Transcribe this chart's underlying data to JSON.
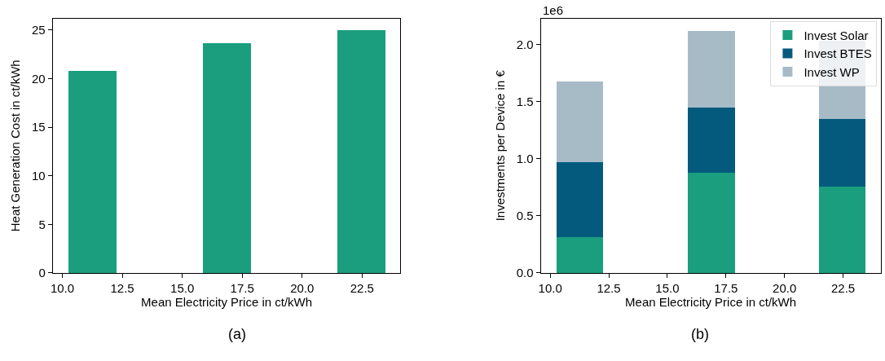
{
  "chart_data": [
    {
      "type": "bar",
      "xlabel": "Mean Electricity Price in ct/kWh",
      "ylabel": "Heat Generation Cost in ct/kWh",
      "x": [
        11.26,
        16.86,
        22.45
      ],
      "values": [
        20.8,
        23.7,
        25.0
      ],
      "color": "#1a9e7e",
      "xlim": [
        9.6,
        24.1
      ],
      "xticks": [
        {
          "value": 10,
          "label": "10.0"
        },
        12.5,
        {
          "value": 15,
          "label": "15.0"
        },
        17.5,
        {
          "value": 20,
          "label": "20.0"
        },
        22.5
      ],
      "ylim": [
        0,
        26.2
      ],
      "yticks": [
        0,
        5,
        10,
        15,
        20,
        25
      ],
      "legend": false,
      "annotations": [
        "(a)"
      ]
    },
    {
      "type": "bar",
      "stacked": true,
      "xlabel": "Mean Electricity Price in ct/kWh",
      "ylabel": "Investments per Device in €",
      "x": [
        11.26,
        16.86,
        22.45
      ],
      "series": [
        {
          "name": "Invest Solar",
          "color": "#1a9e7e",
          "values": [
            0.32,
            0.88,
            0.76
          ]
        },
        {
          "name": "Invest BTES",
          "color": "#045a7d",
          "values": [
            0.65,
            0.57,
            0.59
          ]
        },
        {
          "name": "Invest WP",
          "color": "#a7bbc7",
          "values": [
            0.71,
            0.67,
            0.69
          ]
        }
      ],
      "xlim": [
        9.6,
        24.1
      ],
      "xticks": [
        {
          "value": 10,
          "label": "10.0"
        },
        12.5,
        {
          "value": 15,
          "label": "15.0"
        },
        17.5,
        {
          "value": 20,
          "label": "20.0"
        },
        22.5
      ],
      "ylim": [
        0,
        2.23
      ],
      "yticks": [
        {
          "value": 0,
          "label": "0.0"
        },
        0.5,
        {
          "value": 1,
          "label": "1.0"
        },
        1.5,
        {
          "value": 2,
          "label": "2.0"
        }
      ],
      "legend": "top right",
      "annotations": [
        "1e6",
        "(b)"
      ]
    }
  ]
}
